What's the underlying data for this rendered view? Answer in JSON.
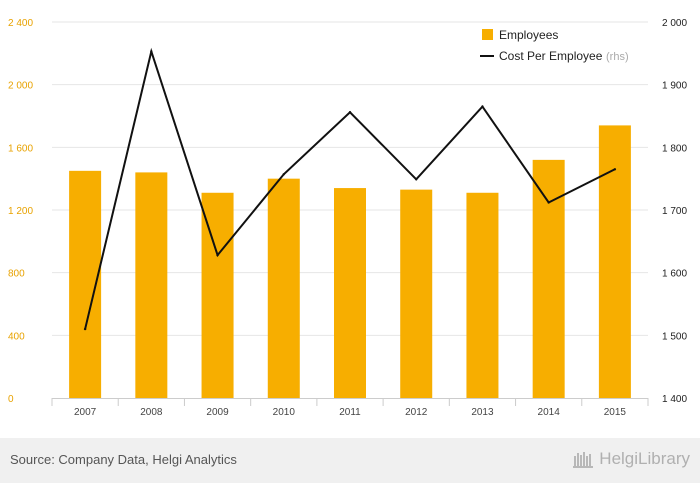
{
  "chart_data": {
    "type": "bar+line",
    "categories": [
      "2007",
      "2008",
      "2009",
      "2010",
      "2011",
      "2012",
      "2013",
      "2014",
      "2015"
    ],
    "series": [
      {
        "name": "Employees",
        "type": "bar",
        "axis": "left",
        "values": [
          1450,
          1440,
          1310,
          1400,
          1340,
          1330,
          1310,
          1520,
          1740
        ]
      },
      {
        "name": "Cost Per Employee",
        "name_suffix": "(rhs)",
        "type": "line",
        "axis": "right",
        "values": [
          1510,
          1953,
          1628,
          1757,
          1856,
          1749,
          1865,
          1712,
          1765
        ]
      }
    ],
    "y_left": {
      "min": 0,
      "max": 2400,
      "ticks": [
        0,
        400,
        800,
        1200,
        1600,
        2000,
        2400
      ],
      "tick_labels": [
        "0",
        "400",
        "800",
        "1 200",
        "1 600",
        "2 000",
        "2 400"
      ]
    },
    "y_right": {
      "min": 1400,
      "max": 2000,
      "ticks": [
        1400,
        1500,
        1600,
        1700,
        1800,
        1900,
        2000
      ],
      "tick_labels": [
        "1 400",
        "1 500",
        "1 600",
        "1 700",
        "1 800",
        "1 900",
        "2 000"
      ]
    },
    "grid": true,
    "legend": "top-right",
    "colors": {
      "bar": "#f7ae00",
      "line": "#111111",
      "left_ticks": "#e8a200",
      "grid": "#e6e6e6"
    }
  },
  "footer": {
    "source": "Source: Company Data, Helgi Analytics",
    "brand": "HelgiLibrary"
  }
}
